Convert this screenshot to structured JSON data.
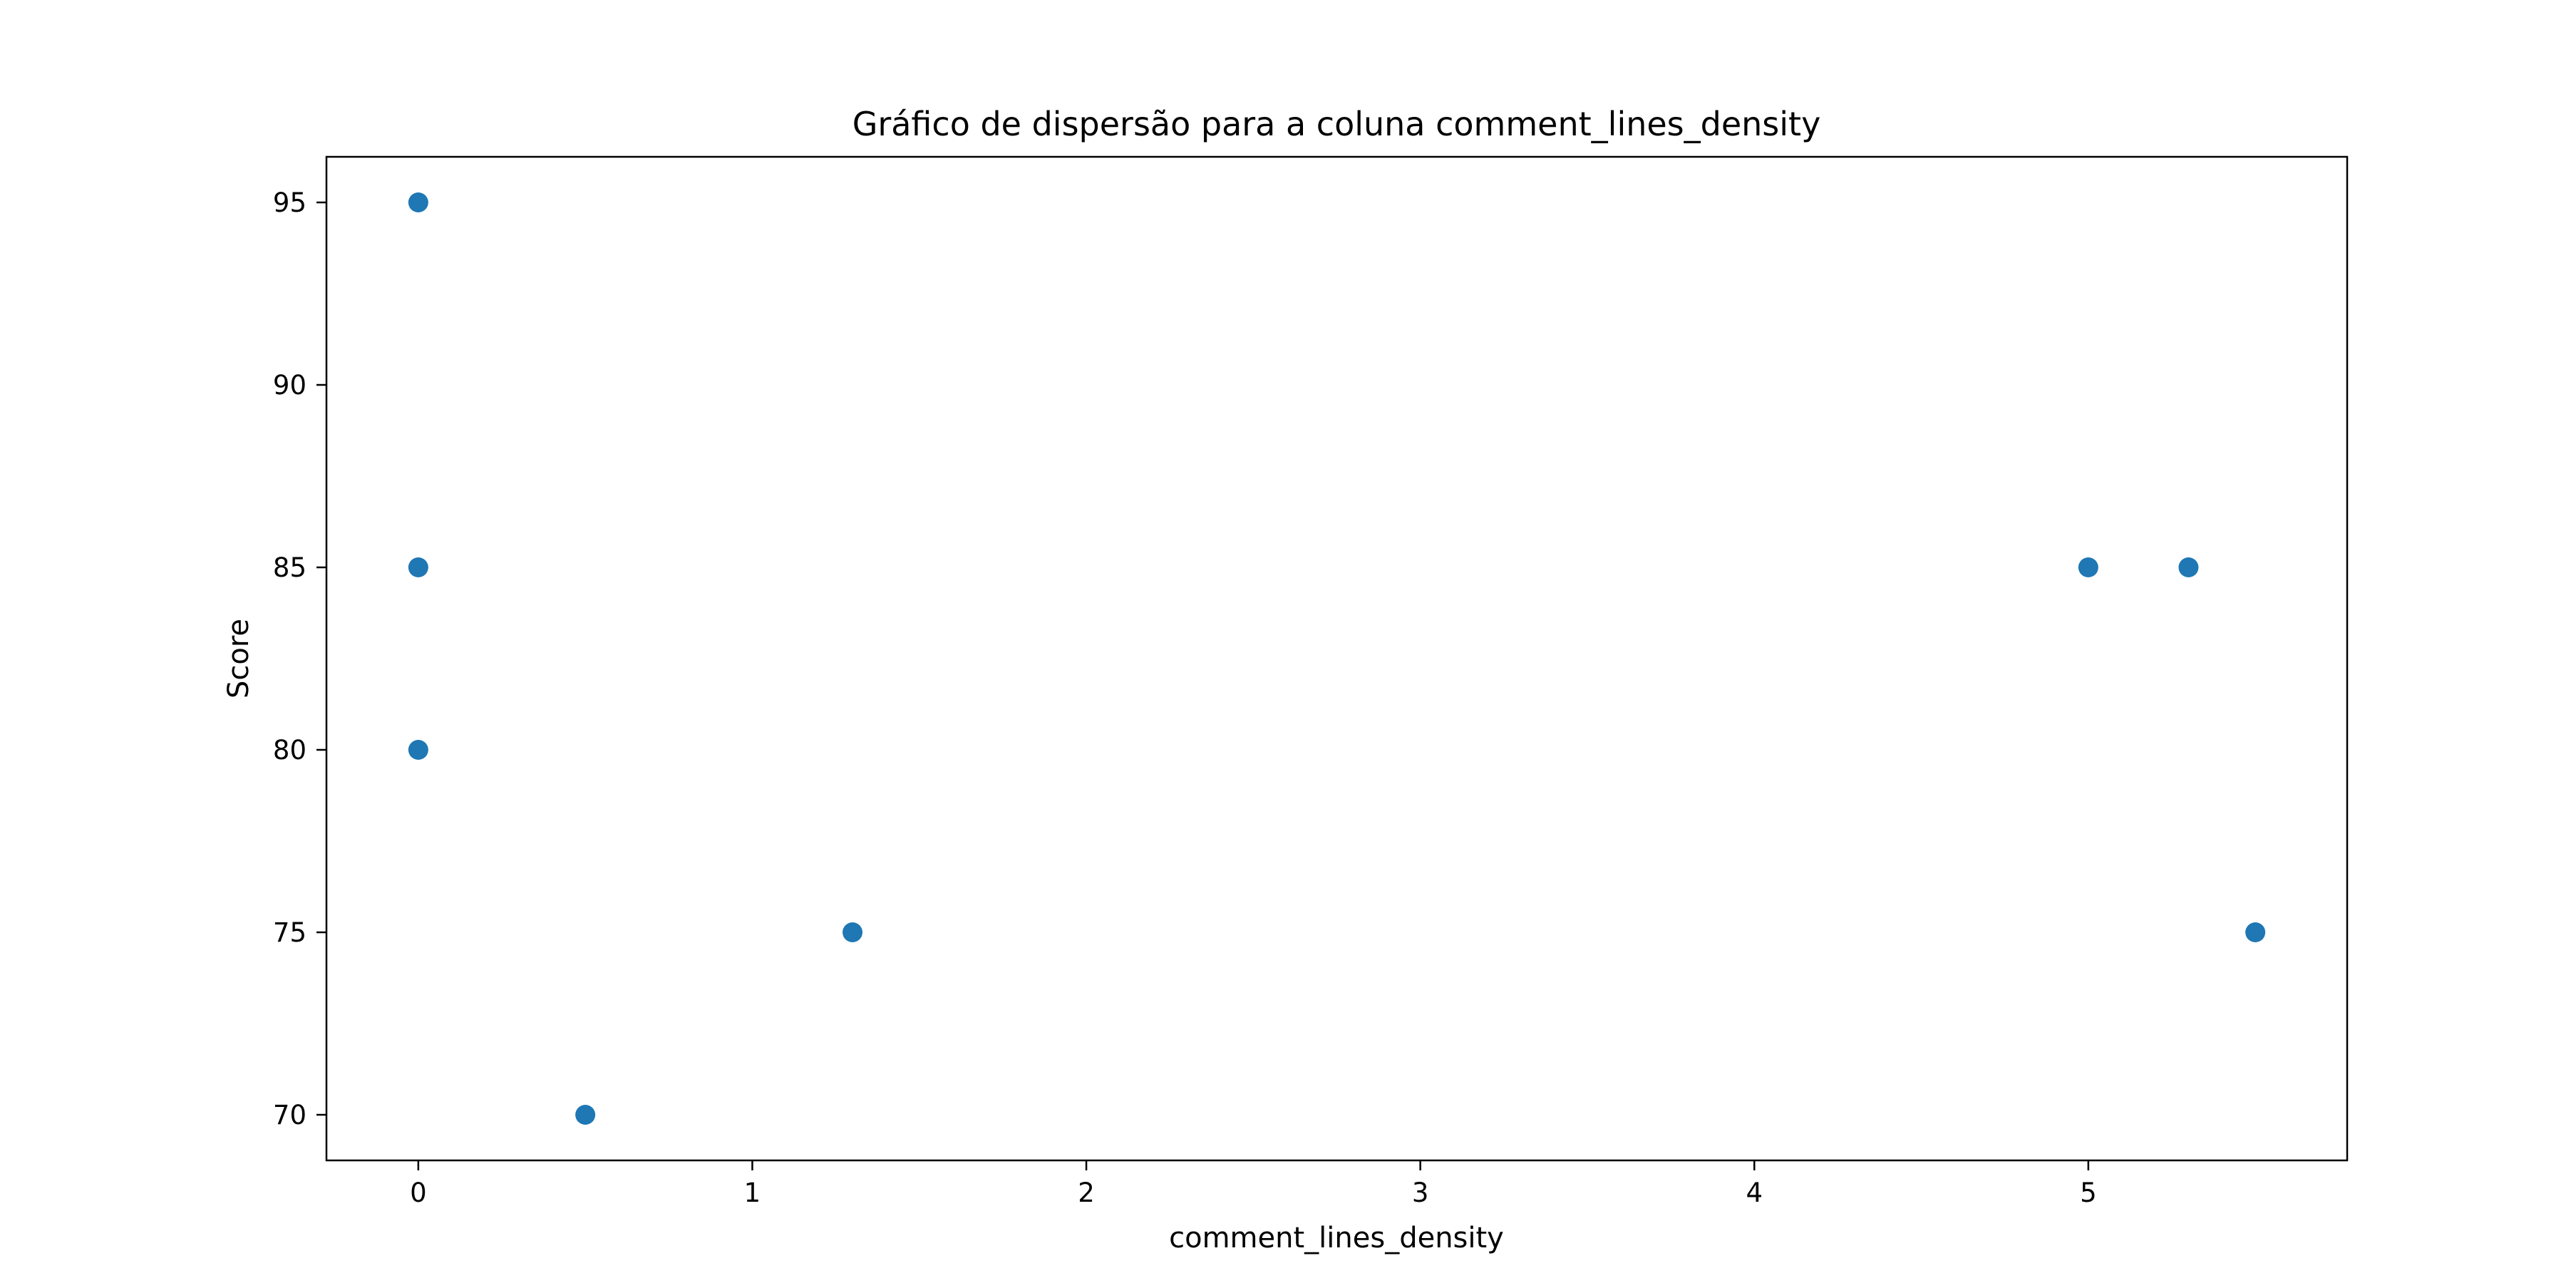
{
  "chart_data": {
    "type": "scatter",
    "title": "Gráfico de dispersão para a coluna comment_lines_density",
    "xlabel": "comment_lines_density",
    "ylabel": "Score",
    "xlim": [
      -0.275,
      5.775
    ],
    "ylim": [
      68.75,
      96.25
    ],
    "xticks": [
      "0",
      "1",
      "2",
      "3",
      "4",
      "5"
    ],
    "yticks": [
      "70",
      "75",
      "80",
      "85",
      "90",
      "95"
    ],
    "grid": false,
    "legend": "none",
    "point_color": "#1f77b4",
    "points": [
      {
        "x": 0,
        "y": 95
      },
      {
        "x": 0,
        "y": 85
      },
      {
        "x": 0,
        "y": 80
      },
      {
        "x": 0.5,
        "y": 70
      },
      {
        "x": 1.3,
        "y": 75
      },
      {
        "x": 5.0,
        "y": 85
      },
      {
        "x": 5.3,
        "y": 85
      },
      {
        "x": 5.5,
        "y": 75
      }
    ]
  }
}
